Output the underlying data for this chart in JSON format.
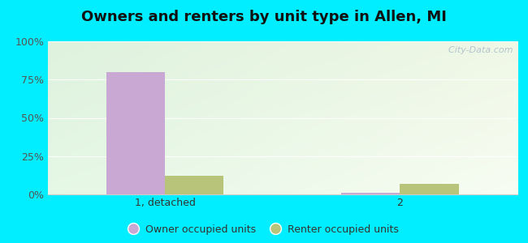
{
  "title": "Owners and renters by unit type in Allen, MI",
  "categories": [
    "1, detached",
    "2"
  ],
  "owner_values": [
    80,
    1
  ],
  "renter_values": [
    12,
    7
  ],
  "owner_color": "#c9a8d4",
  "renter_color": "#b8c47a",
  "yticks": [
    0,
    25,
    50,
    75,
    100
  ],
  "ytick_labels": [
    "0%",
    "25%",
    "50%",
    "75%",
    "100%"
  ],
  "bar_width": 0.25,
  "legend_owner": "Owner occupied units",
  "legend_renter": "Renter occupied units",
  "bg_outer": "#00eeff",
  "watermark": "  City-Data.com",
  "title_fontsize": 13,
  "axis_fontsize": 9,
  "legend_fontsize": 9
}
